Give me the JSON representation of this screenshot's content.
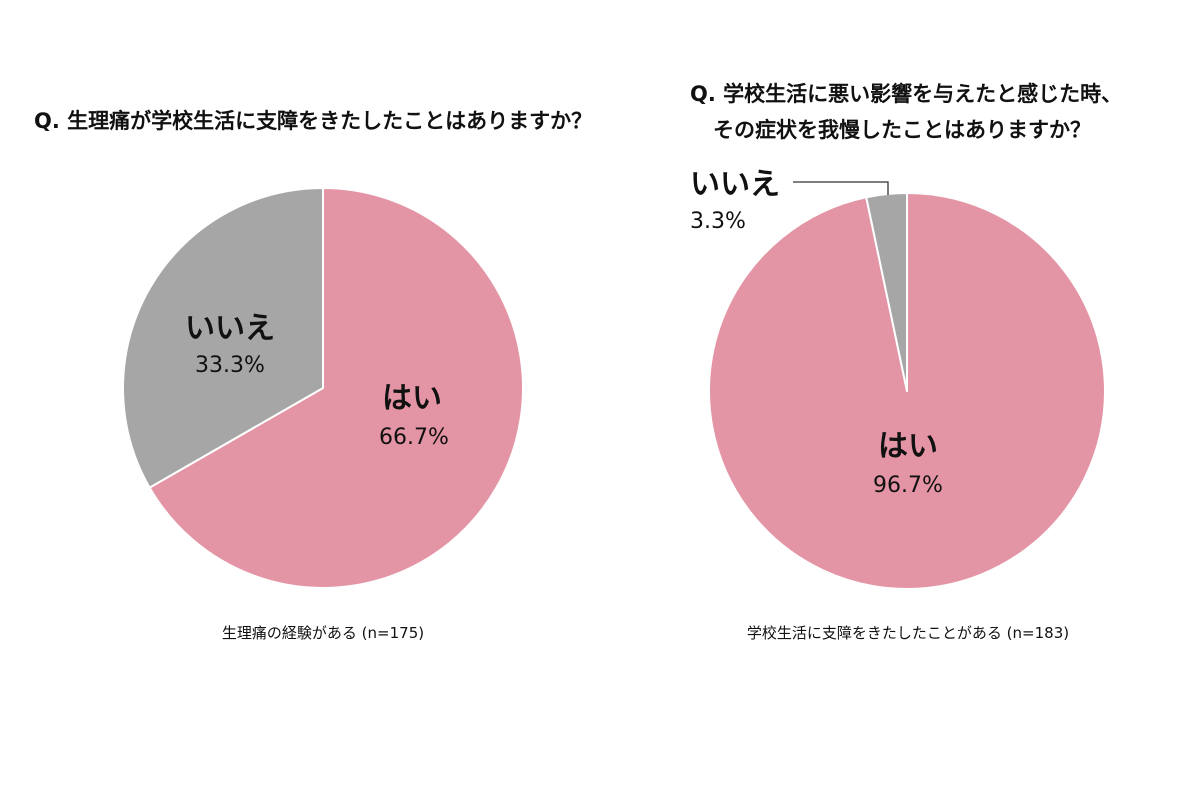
{
  "chart_data": [
    {
      "type": "pie",
      "title": "Q. 生理痛が学校生活に支障をきたしたことはありますか？",
      "caption": "生理痛の経験がある (n=175)",
      "slices": [
        {
          "label": "はい",
          "value": 66.7,
          "value_label": "66.7%",
          "color": "#e495a5"
        },
        {
          "label": "いいえ",
          "value": 33.3,
          "value_label": "33.3%",
          "color": "#a6a6a6"
        }
      ]
    },
    {
      "type": "pie",
      "title_lines": [
        "Q. 学校生活に悪い影響を与えたと感じた時、",
        "その症状を我慢したことはありますか？"
      ],
      "caption": "学校生活に支障をきたしたことがある (n=183)",
      "slices": [
        {
          "label": "はい",
          "value": 96.7,
          "value_label": "96.7%",
          "color": "#e495a5"
        },
        {
          "label": "いいえ",
          "value": 3.3,
          "value_label": "3.3%",
          "color": "#a6a6a6"
        }
      ]
    }
  ]
}
